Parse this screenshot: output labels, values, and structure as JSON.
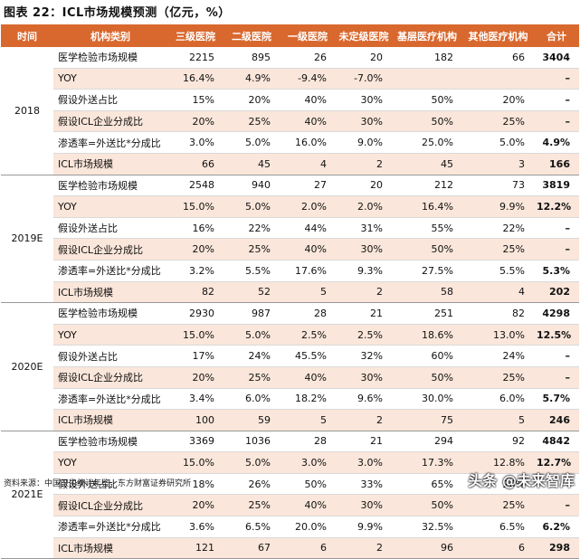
{
  "title": "图表 22：ICL市场规模预测（亿元，%）",
  "headers": [
    "时间",
    "机构类别",
    "三级医院",
    "二级医院",
    "一级医院",
    "未定级医院",
    "基层医疗机构",
    "其他医疗机构",
    "合计"
  ],
  "groups": [
    {
      "year": "2018",
      "rows": [
        {
          "label": "医学检验市场规模",
          "values": [
            "2215",
            "895",
            "26",
            "20",
            "182",
            "66"
          ],
          "total": "3404"
        },
        {
          "label": "YOY",
          "values": [
            "16.4%",
            "4.9%",
            "-9.4%",
            "-7.0%",
            "",
            ""
          ],
          "total": "–"
        },
        {
          "label": "假设外送占比",
          "values": [
            "15%",
            "20%",
            "40%",
            "30%",
            "50%",
            "20%"
          ],
          "total": "–"
        },
        {
          "label": "假设ICL企业分成比",
          "values": [
            "20%",
            "25%",
            "40%",
            "30%",
            "50%",
            "25%"
          ],
          "total": "–"
        },
        {
          "label": "渗透率=外送比*分成比",
          "values": [
            "3.0%",
            "5.0%",
            "16.0%",
            "9.0%",
            "25.0%",
            "5.0%"
          ],
          "total": "4.9%"
        },
        {
          "label": "ICL市场规模",
          "values": [
            "66",
            "45",
            "4",
            "2",
            "45",
            "3"
          ],
          "total": "166"
        }
      ]
    },
    {
      "year": "2019E",
      "rows": [
        {
          "label": "医学检验市场规模",
          "values": [
            "2548",
            "940",
            "27",
            "20",
            "212",
            "73"
          ],
          "total": "3819"
        },
        {
          "label": "YOY",
          "values": [
            "15.0%",
            "5.0%",
            "2.0%",
            "2.0%",
            "16.4%",
            "9.9%"
          ],
          "total": "12.2%"
        },
        {
          "label": "假设外送占比",
          "values": [
            "16%",
            "22%",
            "44%",
            "31%",
            "55%",
            "22%"
          ],
          "total": "–"
        },
        {
          "label": "假设ICL企业分成比",
          "values": [
            "20%",
            "25%",
            "40%",
            "30%",
            "50%",
            "25%"
          ],
          "total": "–"
        },
        {
          "label": "渗透率=外送比*分成比",
          "values": [
            "3.2%",
            "5.5%",
            "17.6%",
            "9.3%",
            "27.5%",
            "5.5%"
          ],
          "total": "5.3%"
        },
        {
          "label": "ICL市场规模",
          "values": [
            "82",
            "52",
            "5",
            "2",
            "58",
            "4"
          ],
          "total": "202"
        }
      ]
    },
    {
      "year": "2020E",
      "rows": [
        {
          "label": "医学检验市场规模",
          "values": [
            "2930",
            "987",
            "28",
            "21",
            "251",
            "82"
          ],
          "total": "4298"
        },
        {
          "label": "YOY",
          "values": [
            "15.0%",
            "5.0%",
            "2.5%",
            "2.5%",
            "18.6%",
            "13.0%"
          ],
          "total": "12.5%"
        },
        {
          "label": "假设外送占比",
          "values": [
            "17%",
            "24%",
            "45.5%",
            "32%",
            "60%",
            "24%"
          ],
          "total": "–"
        },
        {
          "label": "假设ICL企业分成比",
          "values": [
            "20%",
            "25%",
            "40%",
            "30%",
            "50%",
            "25%"
          ],
          "total": "–"
        },
        {
          "label": "渗透率=外送比*分成比",
          "values": [
            "3.4%",
            "6.0%",
            "18.2%",
            "9.6%",
            "30.0%",
            "6.0%"
          ],
          "total": "5.7%"
        },
        {
          "label": "ICL市场规模",
          "values": [
            "100",
            "59",
            "5",
            "2",
            "75",
            "5"
          ],
          "total": "246"
        }
      ]
    },
    {
      "year": "2021E",
      "rows": [
        {
          "label": "医学检验市场规模",
          "values": [
            "3369",
            "1036",
            "28",
            "21",
            "294",
            "92"
          ],
          "total": "4842"
        },
        {
          "label": "YOY",
          "values": [
            "15.0%",
            "5.0%",
            "3.0%",
            "3.0%",
            "17.3%",
            "12.8%"
          ],
          "total": "12.7%"
        },
        {
          "label": "假设外送占比",
          "values": [
            "18%",
            "26%",
            "50%",
            "33%",
            "65%",
            "26%"
          ],
          "total": "–"
        },
        {
          "label": "假设ICL企业分成比",
          "values": [
            "20%",
            "25%",
            "40%",
            "30%",
            "50%",
            "25%"
          ],
          "total": "–"
        },
        {
          "label": "渗透率=外送比*分成比",
          "values": [
            "3.6%",
            "6.5%",
            "20.0%",
            "9.9%",
            "32.5%",
            "6.5%"
          ],
          "total": "6.2%"
        },
        {
          "label": "ICL市场规模",
          "values": [
            "121",
            "67",
            "6",
            "2",
            "96",
            "6"
          ],
          "total": "298"
        }
      ]
    }
  ],
  "source": "资料来源：中国卫生统计年鉴，东方财富证券研究所",
  "watermark": "头条 @未来智库"
}
